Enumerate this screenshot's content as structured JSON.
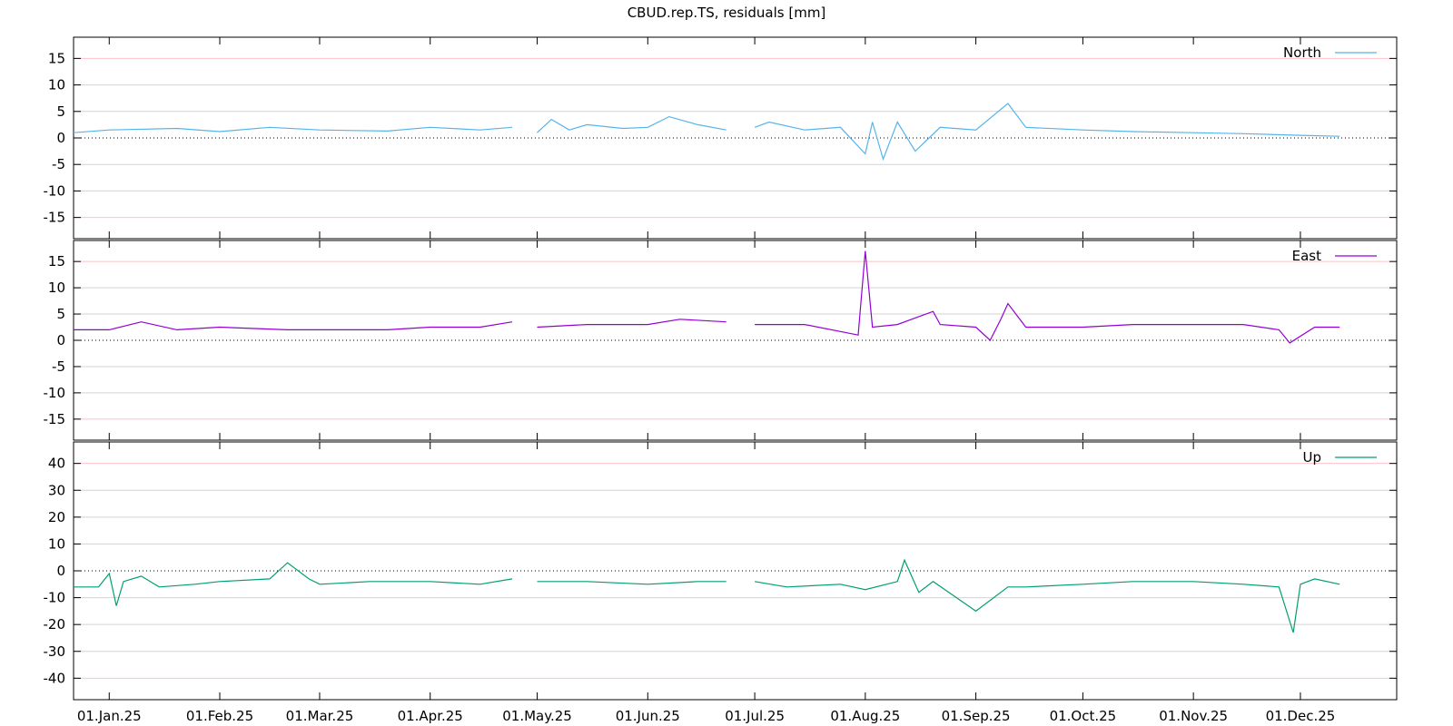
{
  "chart_data": {
    "type": "line",
    "title": "CBUD.rep.TS, residuals [mm]",
    "x_tick_labels": [
      "01.Jan.25",
      "01.Feb.25",
      "01.Mar.25",
      "01.Apr.25",
      "01.May.25",
      "01.Jun.25",
      "01.Jul.25",
      "01.Aug.25",
      "01.Sep.25",
      "01.Oct.25",
      "01.Nov.25",
      "01.Dec.25"
    ],
    "x_tick_dates": [
      "2025-01-01",
      "2025-02-01",
      "2025-03-01",
      "2025-04-01",
      "2025-05-01",
      "2025-06-01",
      "2025-07-01",
      "2025-08-01",
      "2025-09-01",
      "2025-10-01",
      "2025-11-01",
      "2025-12-01"
    ],
    "xlim": [
      "2024-12-22",
      "2025-12-28"
    ],
    "grid": true,
    "legend": "top-right",
    "panels": [
      {
        "series_name": "North",
        "color": "#56b4e9",
        "ylim": [
          -19,
          19
        ],
        "yticks": [
          "15",
          "10",
          "5",
          "0",
          "-5",
          "-10",
          "-15"
        ],
        "ytick_values": [
          15,
          10,
          5,
          0,
          -5,
          -10,
          -15
        ],
        "x": [
          "2024-12-22",
          "2025-01-01",
          "2025-01-20",
          "2025-02-01",
          "2025-02-15",
          "2025-03-01",
          "2025-03-20",
          "2025-04-01",
          "2025-04-15",
          "2025-04-24",
          "2025-04-26",
          "2025-05-01",
          "2025-05-05",
          "2025-05-10",
          "2025-05-15",
          "2025-05-25",
          "2025-06-01",
          "2025-06-07",
          "2025-06-15",
          "2025-06-23",
          "2025-06-25",
          "2025-07-01",
          "2025-07-05",
          "2025-07-15",
          "2025-07-25",
          "2025-08-01",
          "2025-08-03",
          "2025-08-06",
          "2025-08-10",
          "2025-08-15",
          "2025-08-22",
          "2025-09-01",
          "2025-09-10",
          "2025-09-15",
          "2025-10-01",
          "2025-10-15",
          "2025-11-01",
          "2025-11-15",
          "2025-12-01",
          "2025-12-12"
        ],
        "y": [
          1.0,
          1.5,
          1.8,
          1.2,
          2.0,
          1.5,
          1.3,
          2.0,
          1.5,
          2.0,
          null,
          1.0,
          3.5,
          1.5,
          2.5,
          1.8,
          2.0,
          4.0,
          2.5,
          1.5,
          null,
          2.0,
          3.0,
          1.5,
          2.0,
          -3.0,
          3.0,
          -4.0,
          3.0,
          -2.5,
          2.0,
          1.5,
          6.5,
          2.0,
          1.5,
          1.2,
          1.0,
          0.8,
          0.5,
          0.3
        ]
      },
      {
        "series_name": "East",
        "color": "#9400d3",
        "ylim": [
          -19,
          19
        ],
        "yticks": [
          "15",
          "10",
          "5",
          "0",
          "-5",
          "-10",
          "-15"
        ],
        "ytick_values": [
          15,
          10,
          5,
          0,
          -5,
          -10,
          -15
        ],
        "x": [
          "2024-12-22",
          "2025-01-01",
          "2025-01-10",
          "2025-01-20",
          "2025-02-01",
          "2025-02-20",
          "2025-03-01",
          "2025-03-20",
          "2025-04-01",
          "2025-04-15",
          "2025-04-24",
          "2025-04-26",
          "2025-05-01",
          "2025-05-15",
          "2025-06-01",
          "2025-06-10",
          "2025-06-23",
          "2025-06-25",
          "2025-07-01",
          "2025-07-15",
          "2025-07-30",
          "2025-08-01",
          "2025-08-03",
          "2025-08-10",
          "2025-08-20",
          "2025-08-22",
          "2025-09-01",
          "2025-09-05",
          "2025-09-08",
          "2025-09-10",
          "2025-09-15",
          "2025-10-01",
          "2025-10-15",
          "2025-11-01",
          "2025-11-15",
          "2025-11-25",
          "2025-11-28",
          "2025-12-05",
          "2025-12-12"
        ],
        "y": [
          2.0,
          2.0,
          3.5,
          2.0,
          2.5,
          2.0,
          2.0,
          2.0,
          2.5,
          2.5,
          3.5,
          null,
          2.5,
          3.0,
          3.0,
          4.0,
          3.5,
          null,
          3.0,
          3.0,
          1.0,
          17.0,
          2.5,
          3.0,
          5.5,
          3.0,
          2.5,
          0.0,
          4.0,
          7.0,
          2.5,
          2.5,
          3.0,
          3.0,
          3.0,
          2.0,
          -0.5,
          2.5,
          2.5
        ]
      },
      {
        "series_name": "Up",
        "color": "#009e73",
        "ylim": [
          -48,
          48
        ],
        "yticks": [
          "40",
          "30",
          "20",
          "10",
          "0",
          "-10",
          "-20",
          "-30",
          "-40"
        ],
        "ytick_values": [
          40,
          30,
          20,
          10,
          0,
          -10,
          -20,
          -30,
          -40
        ],
        "x": [
          "2024-12-22",
          "2024-12-29",
          "2025-01-01",
          "2025-01-03",
          "2025-01-05",
          "2025-01-10",
          "2025-01-15",
          "2025-01-25",
          "2025-02-01",
          "2025-02-15",
          "2025-02-20",
          "2025-02-26",
          "2025-03-01",
          "2025-03-15",
          "2025-04-01",
          "2025-04-15",
          "2025-04-24",
          "2025-04-26",
          "2025-05-01",
          "2025-05-15",
          "2025-06-01",
          "2025-06-15",
          "2025-06-23",
          "2025-06-25",
          "2025-07-01",
          "2025-07-10",
          "2025-07-25",
          "2025-08-01",
          "2025-08-10",
          "2025-08-12",
          "2025-08-16",
          "2025-08-20",
          "2025-09-01",
          "2025-09-10",
          "2025-09-15",
          "2025-10-01",
          "2025-10-15",
          "2025-11-01",
          "2025-11-15",
          "2025-11-25",
          "2025-11-29",
          "2025-12-01",
          "2025-12-05",
          "2025-12-12"
        ],
        "y": [
          -6,
          -6,
          -1,
          -13,
          -4,
          -2,
          -6,
          -5,
          -4,
          -3,
          3,
          -3,
          -5,
          -4,
          -4,
          -5,
          -3,
          null,
          -4,
          -4,
          -5,
          -4,
          -4,
          null,
          -4,
          -6,
          -5,
          -7,
          -4,
          4,
          -8,
          -4,
          -15,
          -6,
          -6,
          -5,
          -4,
          -4,
          -5,
          -6,
          -23,
          -5,
          -3,
          -5
        ]
      }
    ]
  }
}
